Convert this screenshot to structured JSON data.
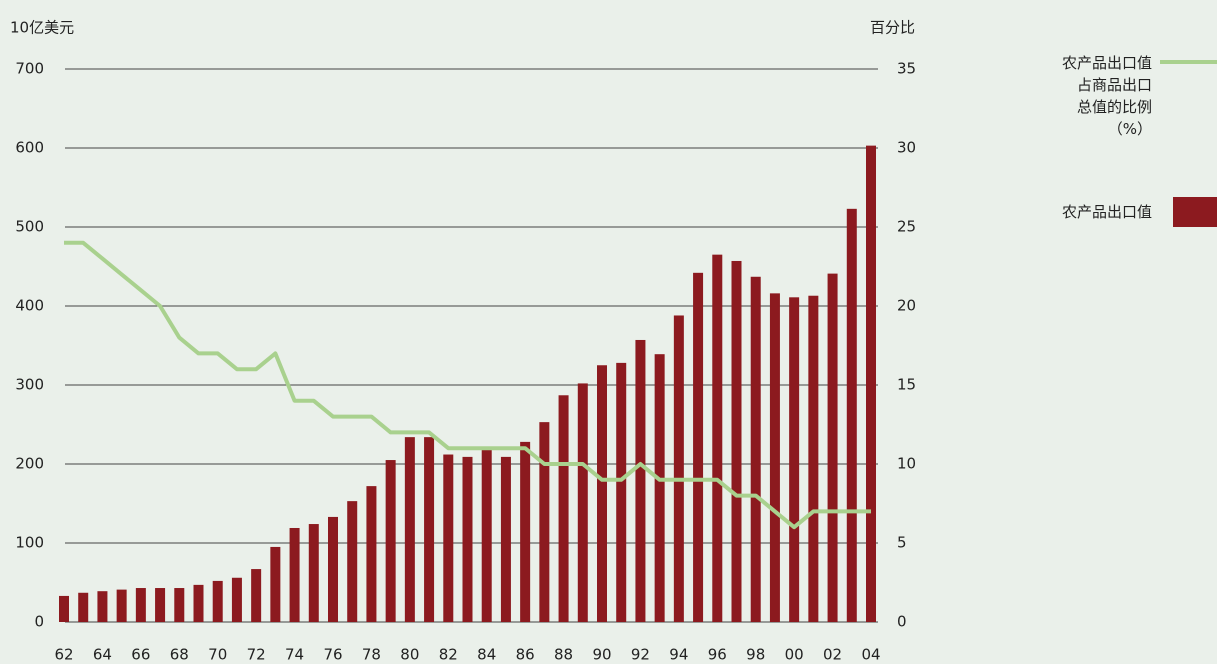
{
  "chart_data": {
    "type": "bar",
    "y_label": "10亿美元",
    "y2_label": "百分比",
    "categories": [
      "62",
      null,
      "64",
      null,
      "66",
      null,
      "68",
      null,
      "70",
      null,
      "72",
      null,
      "74",
      null,
      "76",
      null,
      "78",
      null,
      "80",
      null,
      "82",
      null,
      "84",
      null,
      "86",
      null,
      "88",
      null,
      "90",
      null,
      "92",
      null,
      "94",
      null,
      "96",
      null,
      "98",
      null,
      "00",
      null,
      "02",
      null,
      "04"
    ],
    "series": [
      {
        "name": "农产品出口值",
        "type": "bar",
        "color": "#8c1a1f",
        "values": [
          33,
          37,
          39,
          41,
          43,
          43,
          43,
          47,
          52,
          56,
          67,
          95,
          119,
          124,
          133,
          153,
          172,
          205,
          234,
          234,
          212,
          209,
          219,
          209,
          228,
          253,
          287,
          302,
          325,
          328,
          357,
          339,
          388,
          442,
          465,
          457,
          437,
          416,
          411,
          413,
          441,
          523,
          603
        ]
      },
      {
        "name": "农产品出口值\n占商品出口\n总值的比例\n（%）",
        "type": "line",
        "axis": "y2",
        "color": "#a9d18e",
        "values": [
          24,
          24,
          23,
          22,
          21,
          20,
          18,
          17,
          17,
          16,
          16,
          17,
          14,
          14,
          13,
          13,
          13,
          12,
          12,
          12,
          11,
          11,
          11,
          11,
          11,
          10,
          10,
          10,
          9,
          9,
          10,
          9,
          9,
          9,
          9,
          8,
          8,
          7,
          6,
          7,
          7,
          7,
          7
        ]
      }
    ],
    "ylim": [
      0,
      700
    ],
    "yticks": [
      0,
      100,
      200,
      300,
      400,
      500,
      600,
      700
    ],
    "y2lim": [
      0,
      35
    ],
    "y2ticks": [
      0,
      5,
      10,
      15,
      20,
      25,
      30,
      35
    ],
    "grid": true
  }
}
